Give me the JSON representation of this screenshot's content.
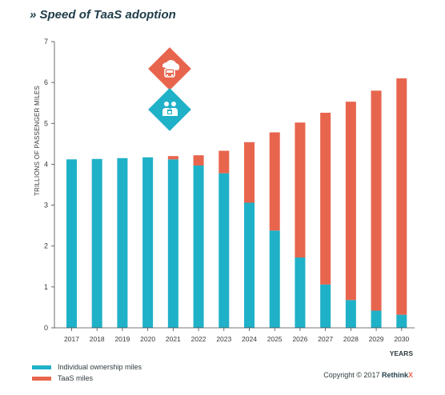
{
  "title": "» Speed of TaaS adoption",
  "chart_data": {
    "type": "bar",
    "stacked": true,
    "ylabel": "TRILLIONS OF PASSENGER MILES",
    "xlabel": "YEARS",
    "ylim": [
      0,
      7
    ],
    "yticks": [
      0,
      1,
      2,
      3,
      4,
      5,
      6,
      7
    ],
    "categories": [
      "2017",
      "2018",
      "2019",
      "2020",
      "2021",
      "2022",
      "2023",
      "2024",
      "2025",
      "2026",
      "2027",
      "2028",
      "2029",
      "2030"
    ],
    "series": [
      {
        "name": "Individual ownership miles",
        "color": "#1fb1c7",
        "values": [
          4.12,
          4.13,
          4.15,
          4.17,
          4.12,
          3.97,
          3.78,
          3.06,
          2.38,
          1.72,
          1.06,
          0.68,
          0.42,
          0.32
        ]
      },
      {
        "name": "TaaS miles",
        "color": "#e8654d",
        "values": [
          0,
          0,
          0,
          0,
          0.08,
          0.25,
          0.55,
          1.48,
          2.4,
          3.3,
          4.2,
          4.85,
          5.38,
          5.78
        ]
      }
    ],
    "legend_position": "bottom-left",
    "grid": false
  },
  "icons": [
    {
      "name": "car-cloud-icon",
      "color": "#e8654d"
    },
    {
      "name": "people-shield-icon",
      "color": "#1fb1c7"
    }
  ],
  "copyright": {
    "prefix": "Copyright © 2017 ",
    "brand": "Rethink",
    "brand_x": "X"
  }
}
